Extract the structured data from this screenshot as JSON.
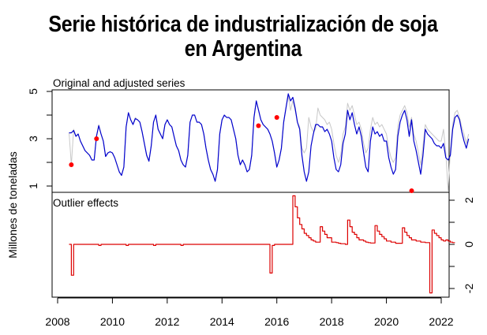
{
  "chart_data": {
    "type": "line",
    "title": "Serie histórica de industrialización de soja en Argentina",
    "title_lines": [
      "Serie histórica de industrialización de soja",
      "en Argentina"
    ],
    "ylabel": "Millones de toneladas",
    "xlabel": "",
    "x_ticks": [
      "2008",
      "2010",
      "2012",
      "2014",
      "2016",
      "2018",
      "2020",
      "2022"
    ],
    "xlim": [
      2008,
      2022
    ],
    "start": 2008.417,
    "frequency": 12,
    "panels": [
      {
        "name": "Original and adjusted series",
        "ylim": [
          0.8,
          5.1
        ],
        "y_ticks": [
          1,
          3,
          5
        ],
        "y_tick_labels": [
          "1",
          "3",
          "5"
        ],
        "y_minor_ticks": [
          2,
          4
        ],
        "axis_side": "left",
        "series": [
          {
            "name": "Original",
            "color": "#c8c8c8",
            "values": [
              3.25,
              1.9,
              3.4,
              3.1,
              3.2,
              2.9,
              2.7,
              2.5,
              2.4,
              2.3,
              2.1,
              2.1,
              3.1,
              3.6,
              3.2,
              2.9,
              2.25,
              2.4,
              2.45,
              2.4,
              2.2,
              1.9,
              1.6,
              1.45,
              1.8,
              3.5,
              4.1,
              3.8,
              3.6,
              3.9,
              3.8,
              3.7,
              3.3,
              2.8,
              2.3,
              2.05,
              2.7,
              3.7,
              4.0,
              3.4,
              3.2,
              3.0,
              3.6,
              3.8,
              3.6,
              3.5,
              3.1,
              2.7,
              2.5,
              2.1,
              1.9,
              1.8,
              2.3,
              3.7,
              4.0,
              4.0,
              3.7,
              3.7,
              3.6,
              3.2,
              2.6,
              2.1,
              1.7,
              1.5,
              1.2,
              1.7,
              3.2,
              3.8,
              4.0,
              3.9,
              3.9,
              3.8,
              3.4,
              3.0,
              2.3,
              1.9,
              2.1,
              1.9,
              1.6,
              1.7,
              2.3,
              3.9,
              4.6,
              4.2,
              3.8,
              3.6,
              3.5,
              3.4,
              3.2,
              2.9,
              2.4,
              1.8,
              2.1,
              2.6,
              3.7,
              4.3,
              4.8,
              4.2,
              4.6,
              4.2,
              3.7,
              3.5,
              2.6,
              2.4,
              2.6,
              3.9,
              3.5,
              3.3,
              3.4,
              4.3,
              4.0,
              3.9,
              3.8,
              3.6,
              3.7,
              3.4,
              2.8,
              2.3,
              2.0,
              2.3,
              3.2,
              3.5,
              4.5,
              4.2,
              4.4,
              4.0,
              3.6,
              3.7,
              3.4,
              2.8,
              2.4,
              2.6,
              3.4,
              3.9,
              3.6,
              3.7,
              3.5,
              3.6,
              3.4,
              3.2,
              2.6,
              2.2,
              2.0,
              2.2,
              3.5,
              4.0,
              4.2,
              4.4,
              4.1,
              3.5,
              3.9,
              3.2,
              2.9,
              2.4,
              1.9,
              2.7,
              3.6,
              3.4,
              3.3,
              3.2,
              3.1,
              3.0,
              2.9,
              2.9,
              3.4,
              2.4,
              0.8,
              2.5,
              3.6,
              4.1,
              4.2,
              3.9,
              3.5,
              3.2,
              2.8,
              3.2
            ]
          },
          {
            "name": "Adjusted",
            "color": "#0000cd",
            "values": [
              3.25,
              3.25,
              3.35,
              3.1,
              3.2,
              2.9,
              2.7,
              2.5,
              2.4,
              2.3,
              2.1,
              2.1,
              3.1,
              3.55,
              3.2,
              2.9,
              2.25,
              2.4,
              2.45,
              2.4,
              2.2,
              1.9,
              1.6,
              1.45,
              1.8,
              3.5,
              4.1,
              3.8,
              3.6,
              3.85,
              3.8,
              3.7,
              3.3,
              2.8,
              2.3,
              2.05,
              2.7,
              3.7,
              4.0,
              3.4,
              3.2,
              3.0,
              3.6,
              3.8,
              3.6,
              3.5,
              3.1,
              2.7,
              2.5,
              2.1,
              1.9,
              1.8,
              2.3,
              3.7,
              4.0,
              4.0,
              3.7,
              3.7,
              3.6,
              3.2,
              2.6,
              2.1,
              1.7,
              1.5,
              1.2,
              1.7,
              3.2,
              3.8,
              4.0,
              3.9,
              3.9,
              3.8,
              3.4,
              3.0,
              2.3,
              1.9,
              2.1,
              1.9,
              1.6,
              1.7,
              2.3,
              3.9,
              4.6,
              4.2,
              3.8,
              3.6,
              3.5,
              3.4,
              3.2,
              2.9,
              2.4,
              1.8,
              2.1,
              2.6,
              3.7,
              4.3,
              4.9,
              4.6,
              4.75,
              4.3,
              3.7,
              3.4,
              2.3,
              1.6,
              1.2,
              1.6,
              2.7,
              3.2,
              3.6,
              3.6,
              3.5,
              3.5,
              3.3,
              3.4,
              3.2,
              2.9,
              2.2,
              1.7,
              1.6,
              1.9,
              2.8,
              3.2,
              4.2,
              3.8,
              4.1,
              3.6,
              3.2,
              3.5,
              3.1,
              2.4,
              1.8,
              1.6,
              2.9,
              3.5,
              3.2,
              3.3,
              3.1,
              3.2,
              2.9,
              2.9,
              2.2,
              1.8,
              1.5,
              1.7,
              3.1,
              3.7,
              4.0,
              4.2,
              3.8,
              3.1,
              3.8,
              2.9,
              2.5,
              2.0,
              1.5,
              2.3,
              3.4,
              3.2,
              3.1,
              3.0,
              2.8,
              2.7,
              2.7,
              2.6,
              2.8,
              2.2,
              2.1,
              2.3,
              3.4,
              3.9,
              4.0,
              3.8,
              3.3,
              2.9,
              2.6,
              3.0
            ]
          }
        ],
        "outliers": [
          {
            "x": 2008.5,
            "y": 1.9
          },
          {
            "x": 2009.42,
            "y": 3.0
          },
          {
            "x": 2015.33,
            "y": 3.55
          },
          {
            "x": 2016.0,
            "y": 3.9
          },
          {
            "x": 2020.92,
            "y": 0.8
          }
        ],
        "outlier_color": "#ff0000"
      },
      {
        "name": "Outlier effects",
        "ylim": [
          -2.3,
          2.3
        ],
        "y_ticks": [
          -2,
          0,
          2
        ],
        "y_tick_labels": [
          "-2",
          "0",
          "2"
        ],
        "y_minor_ticks": [
          -1,
          1
        ],
        "axis_side": "right",
        "series": [
          {
            "name": "Outlier effects",
            "color": "#dd0000",
            "step": true,
            "values": [
              0,
              -1.4,
              0,
              0,
              0,
              0,
              0,
              0,
              0,
              0,
              0,
              0,
              0,
              -0.05,
              0,
              0,
              0,
              0,
              0,
              0,
              0,
              0,
              0,
              0,
              0,
              -0.05,
              0,
              0,
              0,
              0,
              0,
              0,
              0,
              0,
              0,
              0,
              0,
              -0.05,
              0,
              0,
              0,
              0,
              0,
              0,
              0,
              0,
              0,
              0,
              0,
              -0.05,
              0,
              0,
              0,
              0,
              0,
              0,
              0,
              0,
              0,
              0,
              0,
              0,
              0,
              0,
              0,
              0,
              0,
              0,
              0,
              0,
              0,
              0,
              0,
              0,
              0,
              0,
              0,
              0,
              0,
              0,
              0,
              0,
              0,
              0,
              0,
              0,
              0,
              0,
              -1.3,
              -0.05,
              0,
              0,
              0,
              0,
              0,
              0,
              0,
              0,
              2.2,
              1.7,
              1.2,
              0.9,
              0.7,
              0.5,
              0.4,
              0.3,
              0.2,
              0.15,
              0.1,
              0.1,
              0.8,
              0.6,
              0.45,
              0.3,
              0.3,
              0.1,
              0.1,
              0.08,
              0.05,
              0.03,
              0.03,
              0.0,
              1.1,
              0.8,
              0.55,
              0.45,
              0.3,
              0.2,
              0.2,
              0.15,
              0.1,
              0.08,
              0.06,
              0.06,
              0.85,
              0.6,
              0.45,
              0.35,
              0.25,
              0.15,
              0.15,
              0.1,
              0.1,
              0.05,
              0.05,
              0.05,
              0.75,
              0.55,
              0.4,
              0.3,
              0.2,
              0.2,
              0.15,
              0.15,
              0.1,
              0.1,
              0.08,
              0.08,
              -2.2,
              0.65,
              0.5,
              0.4,
              0.3,
              0.2,
              0.15,
              0.2,
              0.15,
              0.1,
              0.08
            ]
          }
        ]
      }
    ],
    "grid": false,
    "legend": "none"
  }
}
